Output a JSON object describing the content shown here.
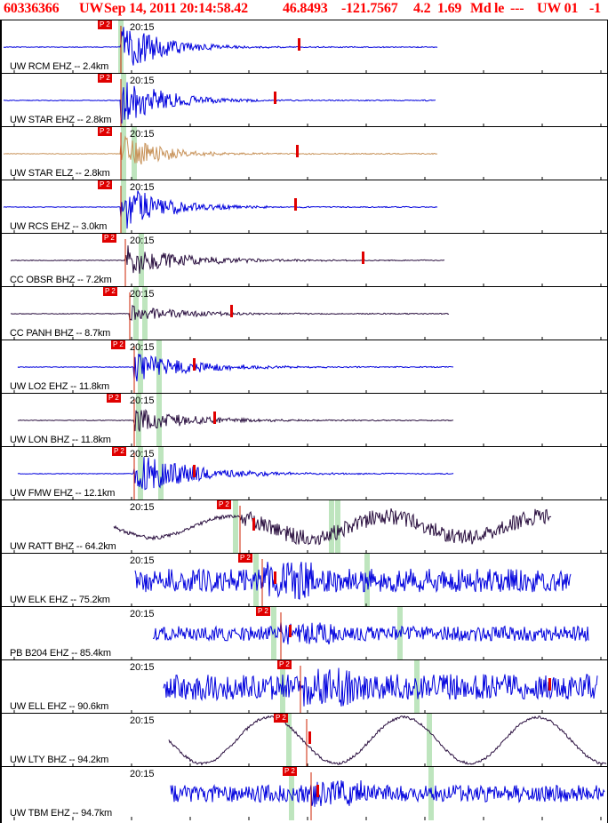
{
  "header": {
    "event_id": "60336366",
    "network": "UW",
    "datetime": "Sep 14, 2011 20:14:58.42",
    "lat": "46.8493",
    "lon": "-121.7567",
    "depth": "4.2",
    "magnitude": "1.69",
    "mag_type": "Md",
    "event_type": "le",
    "extra": "---",
    "source": "UW 01",
    "flag": "-1"
  },
  "time_label": "20:15",
  "pick_label": "P 2",
  "traces": [
    {
      "label": "UW RCM EHZ -- 2.4km",
      "color": "#0000dd"
    },
    {
      "label": "UW STAR EHZ -- 2.8km",
      "color": "#0000dd"
    },
    {
      "label": "UW STAR ELZ -- 2.8km",
      "color": "#c8935a"
    },
    {
      "label": "UW RCS EHZ -- 3.0km",
      "color": "#0000dd"
    },
    {
      "label": "CC OBSR BHZ -- 7.2km",
      "color": "#2a0f3f"
    },
    {
      "label": "CC PANH BHZ -- 8.7km",
      "color": "#2a0f3f"
    },
    {
      "label": "UW LO2 EHZ -- 11.8km",
      "color": "#0000dd"
    },
    {
      "label": "UW LON BHZ -- 11.8km",
      "color": "#2a0f3f"
    },
    {
      "label": "UW FMW EHZ -- 12.1km",
      "color": "#0000dd"
    },
    {
      "label": "UW RATT BHZ -- 64.2km",
      "color": "#2a0f3f"
    },
    {
      "label": "UW ELK EHZ -- 75.2km",
      "color": "#0000dd"
    },
    {
      "label": "PB B204 EHZ -- 85.4km",
      "color": "#0000dd"
    },
    {
      "label": "UW ELL EHZ -- 90.6km",
      "color": "#0000dd"
    },
    {
      "label": "UW LTY BHZ -- 94.2km",
      "color": "#2a0f3f"
    },
    {
      "label": "UW TBM EHZ -- 94.7km",
      "color": "#0000dd"
    }
  ]
}
